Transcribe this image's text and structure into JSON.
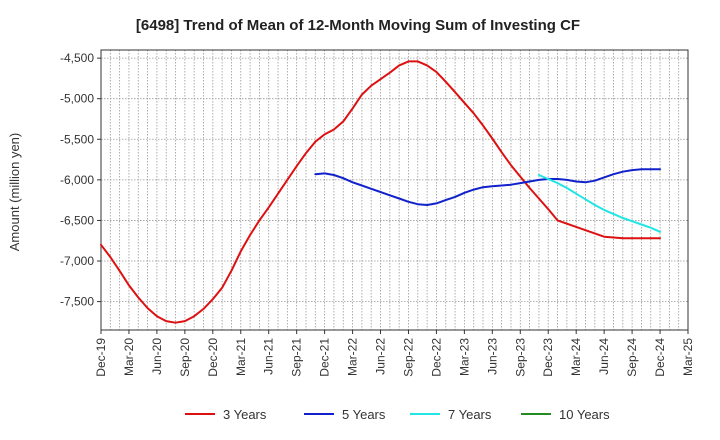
{
  "chart_data": {
    "type": "line",
    "title": "[6498]  Trend of Mean of 12-Month Moving Sum of Investing CF",
    "xlabel": "",
    "ylabel": "Amount (million yen)",
    "ylim": [
      -7850,
      -4400
    ],
    "yticks": [
      -4500,
      -5000,
      -5500,
      -6000,
      -6500,
      -7000,
      -7500
    ],
    "ytick_labels": [
      "-4,500",
      "-5,000",
      "-5,500",
      "-6,000",
      "-6,500",
      "-7,000",
      "-7,500"
    ],
    "x_range_months": [
      0,
      63
    ],
    "xticks": [
      0,
      3,
      6,
      9,
      12,
      15,
      18,
      21,
      24,
      27,
      30,
      33,
      36,
      39,
      42,
      45,
      48,
      51,
      54,
      57,
      60,
      63
    ],
    "xtick_labels": [
      "Dec-19",
      "Mar-20",
      "Jun-20",
      "Sep-20",
      "Dec-20",
      "Mar-21",
      "Jun-21",
      "Sep-21",
      "Dec-21",
      "Mar-22",
      "Jun-22",
      "Sep-22",
      "Dec-22",
      "Mar-23",
      "Jun-23",
      "Sep-23",
      "Dec-23",
      "Mar-24",
      "Jun-24",
      "Sep-24",
      "Dec-24",
      "Mar-25"
    ],
    "grid": true,
    "legend_position": "bottom",
    "series": [
      {
        "name": "3 Years",
        "color": "#dd1111",
        "x": [
          0,
          1,
          2,
          3,
          4,
          5,
          6,
          7,
          8,
          9,
          10,
          11,
          12,
          13,
          14,
          15,
          16,
          17,
          18,
          19,
          20,
          21,
          22,
          23,
          24,
          25,
          26,
          27,
          28,
          29,
          30,
          31,
          32,
          33,
          34,
          35,
          36,
          37,
          38,
          39,
          40,
          41,
          42,
          43,
          44,
          45,
          46,
          47,
          48,
          49,
          50,
          51,
          52,
          53,
          54,
          55,
          56,
          57,
          58,
          59,
          60
        ],
        "y": [
          -6800,
          -6950,
          -7120,
          -7300,
          -7450,
          -7580,
          -7680,
          -7740,
          -7760,
          -7740,
          -7680,
          -7590,
          -7470,
          -7330,
          -7120,
          -6880,
          -6680,
          -6500,
          -6340,
          -6170,
          -6000,
          -5830,
          -5670,
          -5530,
          -5440,
          -5380,
          -5280,
          -5120,
          -4950,
          -4840,
          -4760,
          -4680,
          -4590,
          -4540,
          -4540,
          -4590,
          -4670,
          -4790,
          -4920,
          -5050,
          -5180,
          -5330,
          -5490,
          -5660,
          -5820,
          -5960,
          -6100,
          -6230,
          -6360,
          -6500,
          -6540,
          -6580,
          -6620,
          -6660,
          -6700,
          -6710,
          -6720,
          -6720,
          -6720,
          -6720,
          -6720
        ]
      },
      {
        "name": "5 Years",
        "color": "#1122cc",
        "x": [
          23,
          24,
          25,
          26,
          27,
          28,
          29,
          30,
          31,
          32,
          33,
          34,
          35,
          36,
          37,
          38,
          39,
          40,
          41,
          42,
          43,
          44,
          45,
          46,
          47,
          48,
          49,
          50,
          51,
          52,
          53,
          54,
          55,
          56,
          57,
          58,
          59,
          60
        ],
        "y": [
          -5930,
          -5920,
          -5940,
          -5980,
          -6030,
          -6070,
          -6110,
          -6150,
          -6190,
          -6230,
          -6270,
          -6300,
          -6310,
          -6290,
          -6250,
          -6210,
          -6160,
          -6120,
          -6090,
          -6080,
          -6070,
          -6060,
          -6040,
          -6020,
          -6000,
          -5990,
          -5990,
          -6000,
          -6020,
          -6030,
          -6010,
          -5970,
          -5930,
          -5900,
          -5880,
          -5870,
          -5870,
          -5870
        ]
      },
      {
        "name": "7 Years",
        "color": "#22e5e5",
        "x": [
          47,
          48,
          49,
          50,
          51,
          52,
          53,
          54,
          55,
          56,
          57,
          58,
          59,
          60
        ],
        "y": [
          -5940,
          -5990,
          -6040,
          -6100,
          -6170,
          -6240,
          -6310,
          -6370,
          -6420,
          -6470,
          -6510,
          -6550,
          -6590,
          -6640
        ]
      },
      {
        "name": "10 Years",
        "color": "#228b22",
        "x": [],
        "y": []
      }
    ]
  }
}
